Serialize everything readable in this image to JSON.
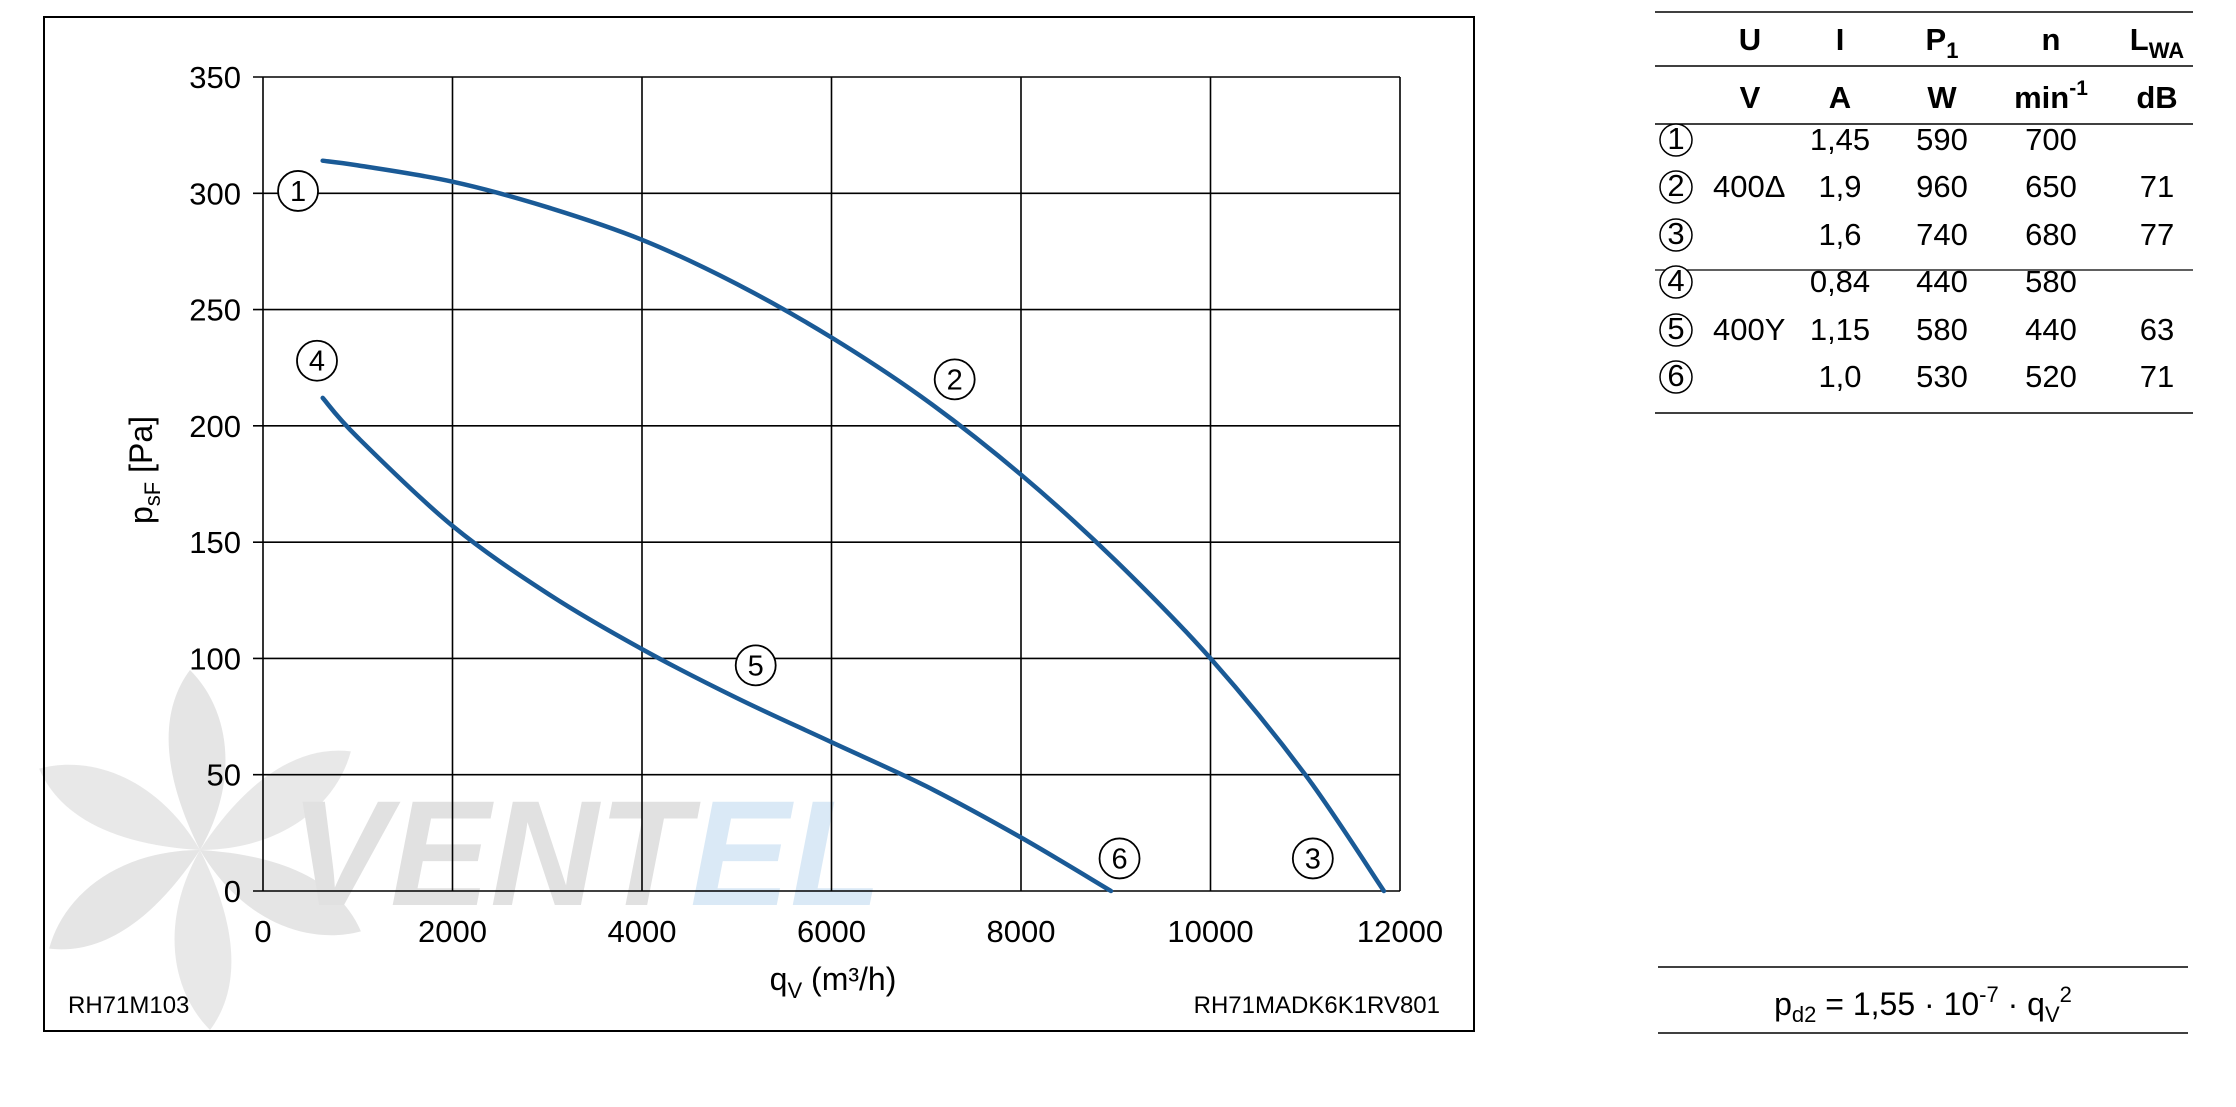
{
  "chart_data": {
    "type": "line",
    "title": "",
    "xlabel": "qV (m³/h)",
    "xlabel_main": "q",
    "xlabel_sub": "V",
    "xlabel_unit": " (m³/h)",
    "ylabel": "psF [Pa]",
    "ylabel_main": "p",
    "ylabel_sub": "sF",
    "ylabel_unit": " [Pa]",
    "xlim": [
      0,
      12000
    ],
    "ylim": [
      0,
      350
    ],
    "xticks": [
      0,
      2000,
      4000,
      6000,
      8000,
      10000,
      12000
    ],
    "xtick_labels": [
      "0",
      "2000",
      "4000",
      "6000",
      "8000",
      "10000",
      "12000"
    ],
    "yticks": [
      0,
      50,
      100,
      150,
      200,
      250,
      300,
      350
    ],
    "ytick_labels": [
      "0",
      "50",
      "100",
      "150",
      "200",
      "250",
      "300",
      "350"
    ],
    "grid": true,
    "line_color": "#1a5a96",
    "series": [
      {
        "x": [
          630,
          1000,
          2000,
          3000,
          4000,
          5000,
          6000,
          7000,
          8000,
          9000,
          10000,
          11000,
          11830
        ],
        "y": [
          314,
          312,
          305,
          294,
          280,
          261,
          238,
          211,
          179,
          142,
          100,
          50,
          0
        ]
      },
      {
        "x": [
          630,
          1000,
          2000,
          3000,
          4000,
          5000,
          6000,
          7000,
          8000,
          8950
        ],
        "y": [
          212,
          195,
          157,
          128,
          104,
          83,
          64,
          45,
          23,
          0
        ]
      }
    ],
    "annotations": [
      {
        "text": "1",
        "x": 370,
        "y": 301
      },
      {
        "text": "2",
        "x": 7300,
        "y": 220
      },
      {
        "text": "3",
        "x": 11080,
        "y": 14
      },
      {
        "text": "4",
        "x": 570,
        "y": 228
      },
      {
        "text": "5",
        "x": 5200,
        "y": 97
      },
      {
        "text": "6",
        "x": 9040,
        "y": 14
      }
    ],
    "model_left": "RH71M103",
    "model_right": "RH71MADK6K1RV801"
  },
  "table": {
    "headers": [
      {
        "main": "U",
        "sub": "",
        "sup": ""
      },
      {
        "main": "I",
        "sub": "",
        "sup": ""
      },
      {
        "main": "P",
        "sub": "1",
        "sup": ""
      },
      {
        "main": "n",
        "sub": "",
        "sup": ""
      },
      {
        "main": "L",
        "sub": "WA",
        "sup": ""
      }
    ],
    "units": [
      {
        "main": "V",
        "sup": ""
      },
      {
        "main": "A",
        "sup": ""
      },
      {
        "main": "W",
        "sup": ""
      },
      {
        "main": "min",
        "sup": "-1"
      },
      {
        "main": "dB",
        "sup": ""
      }
    ],
    "rows": [
      {
        "id": "1",
        "U": "",
        "I": "1,45",
        "P1": "590",
        "n": "700",
        "LWA": ""
      },
      {
        "id": "2",
        "U": "400Δ",
        "I": "1,9",
        "P1": "960",
        "n": "650",
        "LWA": "71"
      },
      {
        "id": "3",
        "U": "",
        "I": "1,6",
        "P1": "740",
        "n": "680",
        "LWA": "77"
      },
      {
        "id": "4",
        "U": "",
        "I": "0,84",
        "P1": "440",
        "n": "580",
        "LWA": ""
      },
      {
        "id": "5",
        "U": "400Y",
        "I": "1,15",
        "P1": "580",
        "n": "440",
        "LWA": "63"
      },
      {
        "id": "6",
        "U": "",
        "I": "1,0",
        "P1": "530",
        "n": "520",
        "LWA": "71"
      }
    ]
  },
  "formula": {
    "lhs_main": "p",
    "lhs_sub": "d2",
    "middle": " = 1,55 · 10",
    "exp": "-7",
    "rhs_dot": " · q",
    "rhs_sub": "V",
    "rhs_sup": "2"
  },
  "watermark": {
    "text_grey": "VENT",
    "text_blue": "EL",
    "grey_color": "#c8c8c8",
    "blue_color": "#bcd8ee"
  }
}
